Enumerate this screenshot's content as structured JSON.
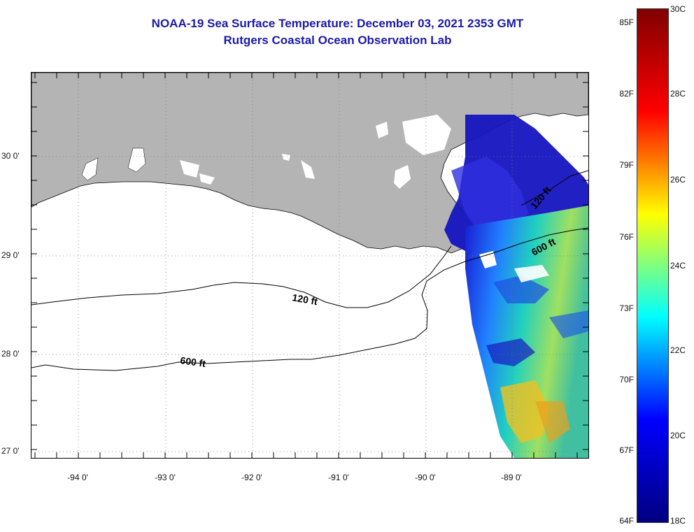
{
  "title": {
    "line1": "NOAA-19 Sea Surface Temperature:  December 03, 2021 2353 GMT",
    "line2": "Rutgers Coastal Ocean Observation Lab"
  },
  "map": {
    "lon_labels": [
      "-94 0'",
      "-93 0'",
      "-92 0'",
      "-91 0'",
      "-90 0'",
      "-89 0'"
    ],
    "lat_labels": [
      "30 0'",
      "29 0'",
      "28 0'",
      "27 0'"
    ],
    "contours": [
      {
        "label": "120 ft"
      },
      {
        "label": "600 ft"
      },
      {
        "label": "120 ft"
      },
      {
        "label": "600 ft"
      }
    ],
    "land_color": "#b4b4b4",
    "no_data_color": "#ffffff"
  },
  "colorbar": {
    "min_c": 18,
    "max_c": 30,
    "fahrenheit_labels": [
      "85F",
      "82F",
      "79F",
      "76F",
      "73F",
      "70F",
      "67F",
      "64F"
    ],
    "celsius_labels": [
      "30C",
      "28C",
      "26C",
      "24C",
      "22C",
      "20C",
      "18C"
    ],
    "colormap": [
      "#000080",
      "#0000ff",
      "#00ffff",
      "#ffff00",
      "#ff0000",
      "#800000"
    ]
  }
}
